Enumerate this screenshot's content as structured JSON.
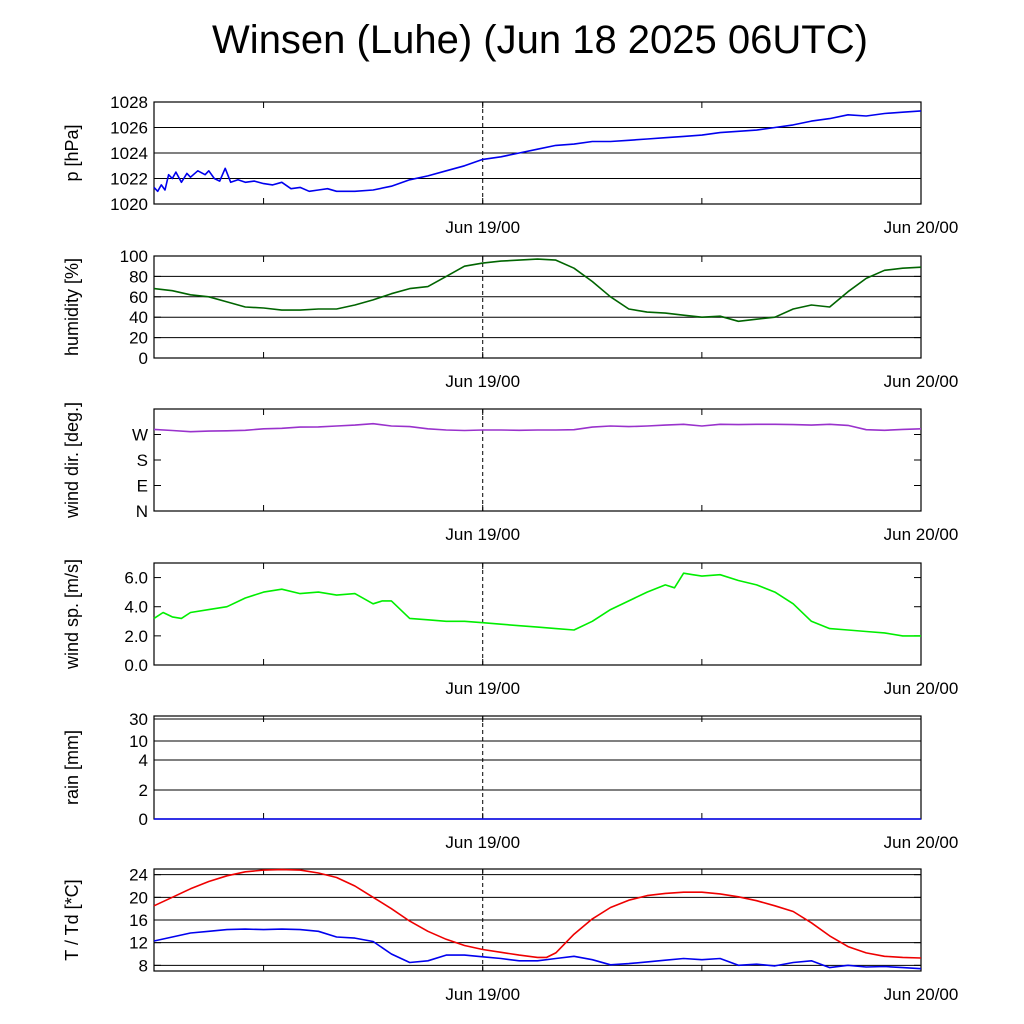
{
  "title": "Winsen (Luhe) (Jun 18 2025 06UTC)",
  "x_axis": {
    "range_hours": [
      0,
      42
    ],
    "ticks": [
      {
        "hours": 18,
        "label": "Jun 19/00"
      },
      {
        "hours": 42,
        "label": "Jun 20/00"
      }
    ],
    "minor_ticks_hours": [
      6,
      18,
      30
    ],
    "marker_hours": 18
  },
  "chart_data": [
    {
      "type": "line",
      "ylabel": "p [hPa]",
      "ylim": [
        1020,
        1028
      ],
      "yticks": [
        1020,
        1022,
        1024,
        1026,
        1028
      ],
      "ytick_labels": [
        "1020",
        "1022",
        "1024",
        "1026",
        "1028"
      ],
      "grid_y": [
        1022,
        1024,
        1026
      ],
      "series": [
        {
          "color": "#0000ee",
          "x": [
            0,
            0.2,
            0.4,
            0.6,
            0.8,
            1.0,
            1.2,
            1.5,
            1.8,
            2.0,
            2.4,
            2.8,
            3.0,
            3.3,
            3.6,
            3.9,
            4.2,
            4.6,
            5.0,
            5.5,
            6,
            6.5,
            7,
            7.5,
            8,
            8.5,
            9,
            9.5,
            10,
            11,
            12,
            13,
            14,
            15,
            16,
            17,
            18,
            19,
            20,
            21,
            22,
            23,
            24,
            25,
            26,
            27,
            28,
            29,
            30,
            31,
            32,
            33,
            34,
            35,
            36,
            37,
            38,
            39,
            40,
            41,
            42
          ],
          "y": [
            1021.3,
            1021.0,
            1021.5,
            1021.1,
            1022.3,
            1022.0,
            1022.5,
            1021.7,
            1022.4,
            1022.1,
            1022.6,
            1022.3,
            1022.6,
            1022.0,
            1021.8,
            1022.8,
            1021.7,
            1021.9,
            1021.7,
            1021.8,
            1021.6,
            1021.5,
            1021.7,
            1021.2,
            1021.3,
            1021.0,
            1021.1,
            1021.2,
            1021.0,
            1021.0,
            1021.1,
            1021.4,
            1021.9,
            1022.2,
            1022.6,
            1023.0,
            1023.5,
            1023.7,
            1024.0,
            1024.3,
            1024.6,
            1024.7,
            1024.9,
            1024.9,
            1025.0,
            1025.1,
            1025.2,
            1025.3,
            1025.4,
            1025.6,
            1025.7,
            1025.8,
            1026.0,
            1026.2,
            1026.5,
            1026.7,
            1027.0,
            1026.9,
            1027.1,
            1027.2,
            1027.3
          ]
        }
      ]
    },
    {
      "type": "line",
      "ylabel": "humidity [%]",
      "ylim": [
        0,
        100
      ],
      "yticks": [
        0,
        20,
        40,
        60,
        80,
        100
      ],
      "ytick_labels": [
        "0",
        "20",
        "40",
        "60",
        "80",
        "100"
      ],
      "grid_y": [
        20,
        40,
        60,
        80,
        100
      ],
      "series": [
        {
          "color": "#006400",
          "x": [
            0,
            1,
            2,
            3,
            4,
            5,
            6,
            7,
            8,
            9,
            10,
            11,
            12,
            13,
            14,
            15,
            16,
            17,
            18,
            19,
            20,
            21,
            22,
            23,
            24,
            25,
            26,
            27,
            28,
            29,
            30,
            31,
            32,
            33,
            34,
            35,
            36,
            37,
            38,
            39,
            40,
            41,
            42
          ],
          "y": [
            68,
            66,
            62,
            60,
            55,
            50,
            49,
            47,
            47,
            48,
            48,
            52,
            57,
            63,
            68,
            70,
            80,
            90,
            93,
            95,
            96,
            97,
            96,
            88,
            75,
            60,
            48,
            45,
            44,
            42,
            40,
            41,
            36,
            38,
            40,
            48,
            52,
            50,
            65,
            78,
            86,
            88,
            89
          ]
        }
      ]
    },
    {
      "type": "line",
      "ylabel": "wind dir. [deg.]",
      "ylim": [
        0,
        360
      ],
      "yticks": [
        0,
        90,
        180,
        270
      ],
      "ytick_labels": [
        "N",
        "E",
        "S",
        "W"
      ],
      "grid_y": [],
      "series": [
        {
          "color": "#9932cc",
          "x": [
            0,
            1,
            2,
            3,
            4,
            5,
            6,
            7,
            8,
            9,
            10,
            11,
            12,
            13,
            14,
            15,
            16,
            17,
            18,
            19,
            20,
            21,
            22,
            23,
            24,
            25,
            26,
            27,
            28,
            29,
            30,
            31,
            32,
            33,
            34,
            35,
            36,
            37,
            38,
            39,
            40,
            41,
            42
          ],
          "y": [
            288,
            284,
            280,
            282,
            283,
            285,
            290,
            292,
            296,
            297,
            300,
            303,
            308,
            300,
            298,
            290,
            286,
            284,
            286,
            286,
            285,
            286,
            286,
            287,
            296,
            300,
            298,
            300,
            303,
            306,
            300,
            306,
            305,
            306,
            306,
            305,
            303,
            306,
            302,
            287,
            285,
            288,
            290
          ]
        }
      ]
    },
    {
      "type": "line",
      "ylabel": "wind sp. [m/s]",
      "ylim": [
        0,
        7
      ],
      "yticks": [
        0,
        2,
        4,
        6
      ],
      "ytick_labels": [
        "0.0",
        "2.0",
        "4.0",
        "6.0"
      ],
      "grid_y": [],
      "series": [
        {
          "color": "#00ee00",
          "x": [
            0,
            0.5,
            1,
            1.5,
            2,
            3,
            4,
            5,
            6,
            7,
            8,
            9,
            10,
            11,
            12,
            12.5,
            13,
            14,
            15,
            16,
            17,
            18,
            19,
            20,
            21,
            22,
            23,
            24,
            25,
            26,
            27,
            28,
            28.5,
            29,
            29.5,
            30,
            31,
            32,
            33,
            34,
            35,
            36,
            37,
            38,
            39,
            40,
            41,
            42
          ],
          "y": [
            3.2,
            3.6,
            3.3,
            3.2,
            3.6,
            3.8,
            4.0,
            4.6,
            5.0,
            5.2,
            4.9,
            5.0,
            4.8,
            4.9,
            4.2,
            4.4,
            4.4,
            3.2,
            3.1,
            3.0,
            3.0,
            2.9,
            2.8,
            2.7,
            2.6,
            2.5,
            2.4,
            3.0,
            3.8,
            4.4,
            5.0,
            5.5,
            5.3,
            6.3,
            6.2,
            6.1,
            6.2,
            5.8,
            5.5,
            5.0,
            4.2,
            3.0,
            2.5,
            2.4,
            2.3,
            2.2,
            2.0,
            2.0
          ]
        }
      ]
    },
    {
      "type": "line",
      "ylabel": "rain [mm]",
      "yticks": [
        0,
        2,
        4,
        10,
        30
      ],
      "ytick_labels": [
        "0",
        "2",
        "4",
        "10",
        "30"
      ],
      "grid_y": [
        2,
        4,
        10,
        30
      ],
      "series": [
        {
          "color": "#0000ee",
          "x": [
            0,
            42
          ],
          "y": [
            0,
            0
          ]
        }
      ]
    },
    {
      "type": "line",
      "ylabel": "T / Td [*C]",
      "ylim": [
        7,
        25
      ],
      "yticks": [
        8,
        12,
        16,
        20,
        24
      ],
      "ytick_labels": [
        "8",
        "12",
        "16",
        "20",
        "24"
      ],
      "grid_y": [
        8,
        12,
        16,
        20,
        24
      ],
      "series": [
        {
          "color": "#ee0000",
          "x": [
            0,
            1,
            2,
            3,
            4,
            5,
            6,
            7,
            8,
            9,
            10,
            11,
            12,
            13,
            14,
            15,
            16,
            17,
            18,
            19,
            20,
            21,
            21.5,
            22,
            23,
            24,
            25,
            26,
            27,
            28,
            29,
            30,
            31,
            32,
            33,
            34,
            35,
            36,
            37,
            38,
            39,
            40,
            41,
            42
          ],
          "y": [
            18.5,
            20.0,
            21.5,
            22.8,
            23.8,
            24.5,
            24.8,
            24.9,
            24.8,
            24.3,
            23.5,
            22.0,
            20.0,
            18.0,
            15.8,
            14.0,
            12.6,
            11.5,
            10.8,
            10.3,
            9.8,
            9.4,
            9.4,
            10.2,
            13.5,
            16.2,
            18.2,
            19.5,
            20.3,
            20.7,
            20.9,
            20.9,
            20.6,
            20.1,
            19.4,
            18.5,
            17.5,
            15.5,
            13.2,
            11.3,
            10.2,
            9.6,
            9.4,
            9.3
          ]
        },
        {
          "color": "#0000ee",
          "x": [
            0,
            1,
            2,
            3,
            4,
            5,
            6,
            7,
            8,
            9,
            10,
            11,
            12,
            13,
            14,
            15,
            16,
            17,
            18,
            19,
            20,
            21,
            22,
            23,
            24,
            25,
            26,
            27,
            28,
            29,
            30,
            31,
            32,
            33,
            34,
            35,
            36,
            37,
            38,
            39,
            40,
            41,
            42
          ],
          "y": [
            12.3,
            13.0,
            13.7,
            14.0,
            14.3,
            14.4,
            14.3,
            14.4,
            14.3,
            14.0,
            13.0,
            12.8,
            12.2,
            10.0,
            8.5,
            8.8,
            9.8,
            9.8,
            9.5,
            9.2,
            8.8,
            8.8,
            9.2,
            9.6,
            9.0,
            8.1,
            8.3,
            8.6,
            8.9,
            9.2,
            9.0,
            9.2,
            8.0,
            8.2,
            7.9,
            8.5,
            8.8,
            7.6,
            8.0,
            7.7,
            7.8,
            7.6,
            7.4
          ]
        }
      ]
    }
  ]
}
